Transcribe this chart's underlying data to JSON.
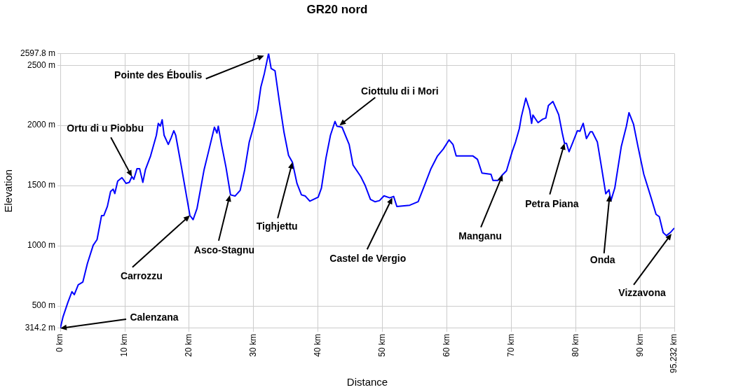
{
  "chart_data": {
    "type": "line",
    "title": "GR20 nord",
    "xlabel": "Distance",
    "ylabel": "Elevation",
    "color": "#0000ff",
    "marker": "none",
    "line_style": "solid",
    "grid": true,
    "legend": false,
    "x": [
      0,
      0.43,
      1.16,
      1.8,
      2.17,
      2.78,
      3.5,
      4.2,
      5.1,
      5.7,
      6.4,
      6.75,
      7.3,
      7.8,
      8.2,
      8.45,
      8.9,
      9.56,
      10.2,
      10.7,
      11.1,
      11.4,
      11.9,
      12.3,
      12.8,
      13.2,
      14.0,
      14.9,
      15.2,
      15.5,
      15.8,
      16.1,
      16.75,
      17.2,
      17.6,
      17.9,
      18.8,
      19.6,
      20.1,
      20.6,
      21.2,
      22.3,
      23.0,
      23.9,
      24.3,
      24.5,
      25.0,
      25.7,
      26.4,
      27.1,
      27.9,
      28.6,
      29.3,
      30.0,
      30.6,
      31.1,
      31.65,
      32.3,
      32.7,
      33.3,
      34.0,
      34.7,
      35.4,
      36.0,
      36.7,
      37.4,
      38.0,
      38.7,
      40.0,
      40.5,
      41.2,
      41.9,
      42.6,
      42.9,
      43.7,
      44.8,
      45.4,
      46.6,
      47.3,
      48.1,
      48.8,
      49.5,
      50.2,
      51.1,
      51.7,
      52.2,
      54.2,
      55.5,
      56.6,
      57.5,
      58.5,
      59.4,
      60.3,
      60.9,
      61.4,
      64.0,
      64.7,
      65.4,
      66.8,
      67.1,
      67.9,
      68.5,
      69.2,
      70.1,
      70.6,
      71.2,
      71.5,
      72.2,
      72.8,
      73.1,
      73.3,
      74.1,
      74.8,
      75.3,
      75.7,
      76.4,
      77.3,
      77.85,
      78.2,
      78.5,
      78.9,
      79.5,
      80.2,
      80.6,
      81.1,
      81.6,
      82.2,
      82.5,
      83.3,
      84.0,
      84.6,
      85.1,
      85.4,
      86.0,
      87.0,
      87.8,
      88.2,
      88.9,
      89.6,
      90.5,
      91.6,
      92.4,
      92.9,
      93.5,
      94.0,
      94.6,
      95.232
    ],
    "values": [
      314.2,
      411,
      527,
      618,
      594,
      676,
      699,
      852,
      1004,
      1051,
      1251,
      1251,
      1327,
      1451,
      1470,
      1434,
      1537,
      1566,
      1518,
      1527,
      1575,
      1552,
      1641,
      1641,
      1527,
      1632,
      1746,
      1918,
      2017,
      1994,
      2047,
      1918,
      1842,
      1899,
      1956,
      1918,
      1651,
      1405,
      1252,
      1217,
      1309,
      1632,
      1785,
      1985,
      1937,
      1994,
      1842,
      1651,
      1423,
      1413,
      1461,
      1632,
      1861,
      1994,
      2127,
      2318,
      2432,
      2597.8,
      2473,
      2454,
      2188,
      1941,
      1751,
      1694,
      1519,
      1423,
      1413,
      1370,
      1404,
      1480,
      1728,
      1918,
      2033,
      1994,
      1985,
      1842,
      1671,
      1575,
      1499,
      1385,
      1366,
      1375,
      1415,
      1398,
      1410,
      1326,
      1337,
      1366,
      1518,
      1642,
      1746,
      1804,
      1880,
      1842,
      1746,
      1746,
      1718,
      1604,
      1594,
      1543,
      1543,
      1585,
      1623,
      1785,
      1861,
      1975,
      2070,
      2226,
      2127,
      2017,
      2086,
      2023,
      2051,
      2061,
      2165,
      2199,
      2089,
      1937,
      1851,
      1851,
      1781,
      1861,
      1956,
      1952,
      2017,
      1890,
      1947,
      1947,
      1861,
      1632,
      1432,
      1465,
      1375,
      1480,
      1823,
      1994,
      2106,
      2011,
      1823,
      1594,
      1404,
      1261,
      1242,
      1109,
      1084,
      1109,
      1147
    ],
    "xlim": [
      0,
      95.232
    ],
    "xticks": [
      {
        "value": 0,
        "label": "0 km"
      },
      {
        "value": 10,
        "label": "10 km"
      },
      {
        "value": 20,
        "label": "20 km"
      },
      {
        "value": 30,
        "label": "30 km"
      },
      {
        "value": 40,
        "label": "40 km"
      },
      {
        "value": 50,
        "label": "50 km"
      },
      {
        "value": 60,
        "label": "60 km"
      },
      {
        "value": 70,
        "label": "70 km"
      },
      {
        "value": 80,
        "label": "80 km"
      },
      {
        "value": 90,
        "label": "90 km"
      },
      {
        "value": 95.232,
        "label": "95.232 km"
      }
    ],
    "ylim": [
      314.2,
      2597.8
    ],
    "yticks": [
      {
        "value": 314.2,
        "label": "314.2 m"
      },
      {
        "value": 500,
        "label": "500 m"
      },
      {
        "value": 1000,
        "label": "1000 m"
      },
      {
        "value": 1500,
        "label": "1500 m"
      },
      {
        "value": 2000,
        "label": "2000 m"
      },
      {
        "value": 2500,
        "label": "2500 m"
      },
      {
        "value": 2597.8,
        "label": "2597.8 m"
      }
    ],
    "annotations": [
      {
        "text": "Pointe des Éboulis",
        "x": 31.6,
        "y": 2580
      },
      {
        "text": "Ortu di u Piobbu",
        "x": 11.1,
        "y": 1575
      },
      {
        "text": "Carrozzu",
        "x": 20.1,
        "y": 1252
      },
      {
        "text": "Asco-Stagnu",
        "x": 26.3,
        "y": 1420
      },
      {
        "text": "Tighjettu",
        "x": 36.0,
        "y": 1694
      },
      {
        "text": "Ciottulu di i Mori",
        "x": 43.3,
        "y": 2000
      },
      {
        "text": "Castel de Vergio",
        "x": 51.5,
        "y": 1400
      },
      {
        "text": "Manganu",
        "x": 68.6,
        "y": 1590
      },
      {
        "text": "Petra Piana",
        "x": 78.2,
        "y": 1851
      },
      {
        "text": "Onda",
        "x": 85.2,
        "y": 1420
      },
      {
        "text": "Vizzavona",
        "x": 94.8,
        "y": 1100
      },
      {
        "text": "Calenzana",
        "x": 0,
        "y": 314
      }
    ]
  }
}
